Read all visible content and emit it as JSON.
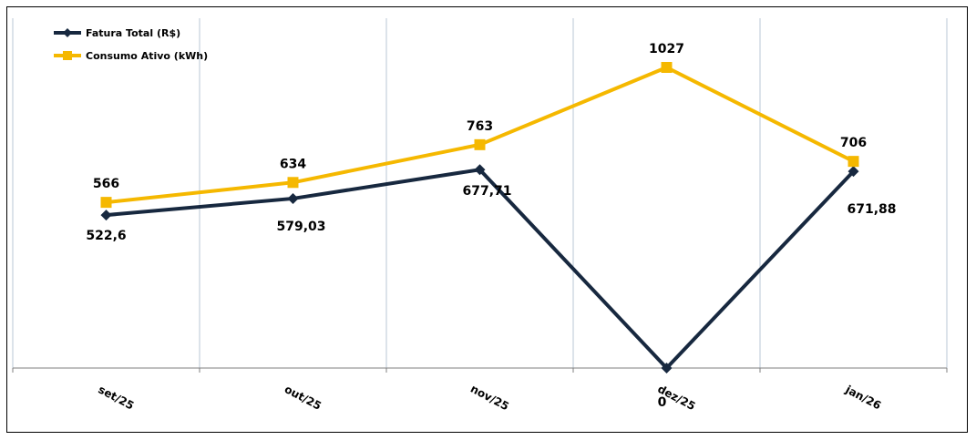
{
  "chart_data": {
    "type": "line",
    "categories": [
      "set/25",
      "out/25",
      "nov/25",
      "dez/25",
      "jan/26"
    ],
    "series": [
      {
        "name": "Fatura Total (R$)",
        "values": [
          522.6,
          579.03,
          677.71,
          0,
          671.88
        ],
        "labels": [
          "522,6",
          "579,03",
          "677,71",
          "0",
          "671,88"
        ],
        "color": "#17283f",
        "marker": "diamond"
      },
      {
        "name": "Consumo Ativo (kWh)",
        "values": [
          566,
          634,
          763,
          1027,
          706
        ],
        "labels": [
          "566",
          "634",
          "763",
          "1027",
          "706"
        ],
        "color": "#f5b800",
        "marker": "square"
      }
    ],
    "legend": "top-left",
    "grid": "vertical",
    "gridColor": "#b8c7d6"
  }
}
